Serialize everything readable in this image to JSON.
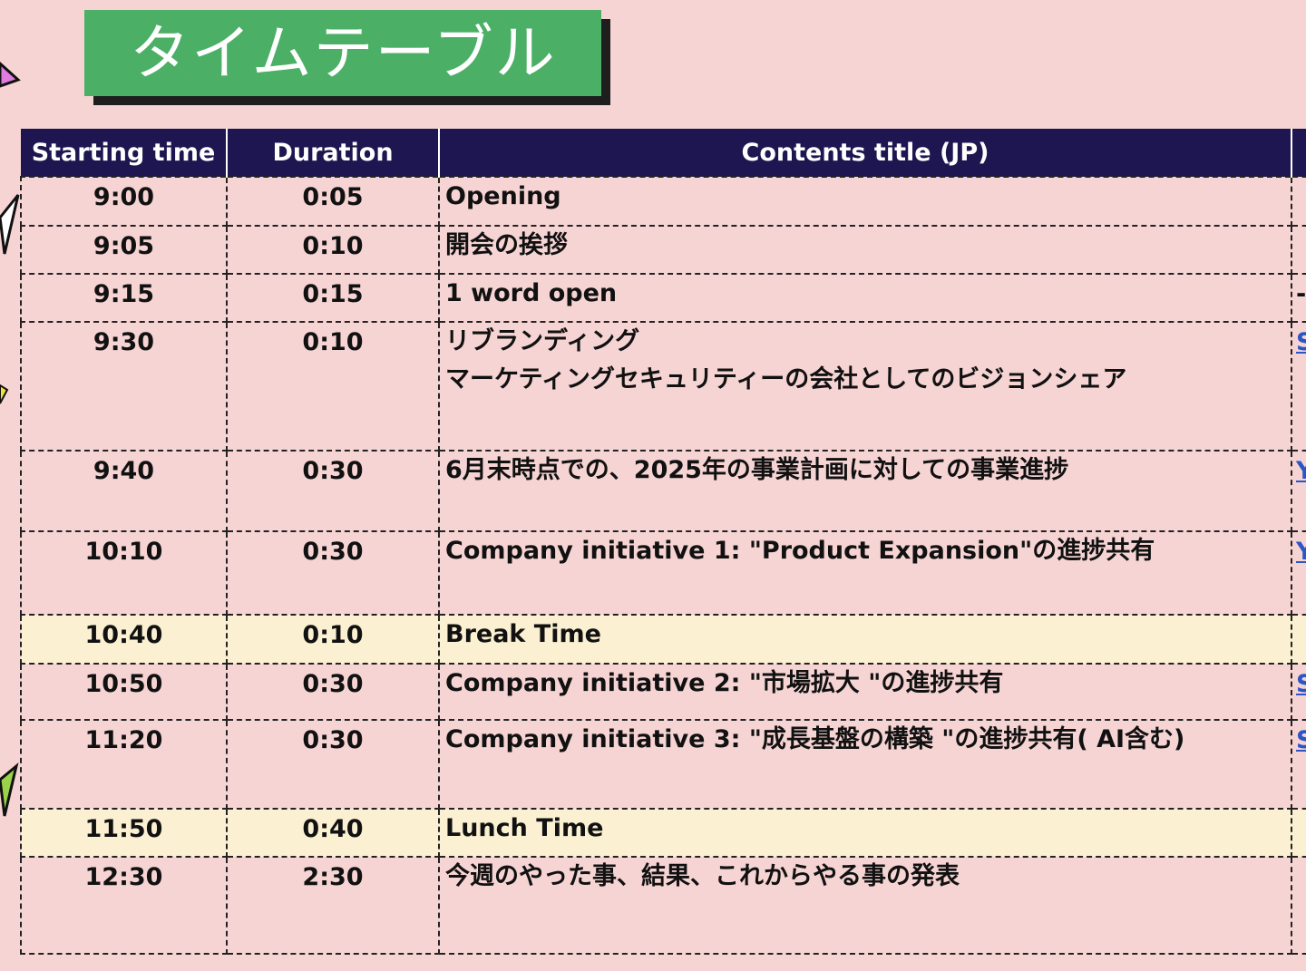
{
  "title": "タイムテーブル",
  "table": {
    "headers": [
      "Starting time",
      "Duration",
      "Contents title (JP)",
      ""
    ],
    "rows": [
      {
        "start": "9:00",
        "duration": "0:05",
        "title": "Opening",
        "extra": "",
        "h": 54
      },
      {
        "start": "9:05",
        "duration": "0:10",
        "title": "開会の挨拶",
        "extra": "",
        "h": 53
      },
      {
        "start": "9:15",
        "duration": "0:15",
        "title": "1 word open",
        "extra": "-",
        "h": 53
      },
      {
        "start": "9:30",
        "duration": "0:10",
        "title": "リブランディング\nマーケティングセキュリティーの会社としてのビジョンシェア",
        "extra": "S",
        "h": 142
      },
      {
        "start": "9:40",
        "duration": "0:30",
        "title": "6月末時点での、2025年の事業計画に対しての事業進捗",
        "extra": "Y",
        "h": 89
      },
      {
        "start": "10:10",
        "duration": "0:30",
        "title": "Company initiative 1: \"Product Expansion\"の進捗共有",
        "extra": "Y",
        "h": 92
      },
      {
        "start": "10:40",
        "duration": "0:10",
        "title": "Break Time",
        "extra": "",
        "h": 54,
        "break": true
      },
      {
        "start": "10:50",
        "duration": "0:30",
        "title": "Company initiative 2: \"市場拡大 \"の進捗共有",
        "extra": "S",
        "h": 62
      },
      {
        "start": "11:20",
        "duration": "0:30",
        "title": "Company initiative 3: \"成長基盤の構築 \"の進捗共有( AI含む)",
        "extra": "S",
        "h": 98
      },
      {
        "start": "11:50",
        "duration": "0:40",
        "title": "Lunch Time",
        "extra": "",
        "h": 53,
        "break": true
      },
      {
        "start": "12:30",
        "duration": "2:30",
        "title": "今週のやった事、結果、これからやる事の発表",
        "extra": "",
        "h": 107
      }
    ]
  }
}
